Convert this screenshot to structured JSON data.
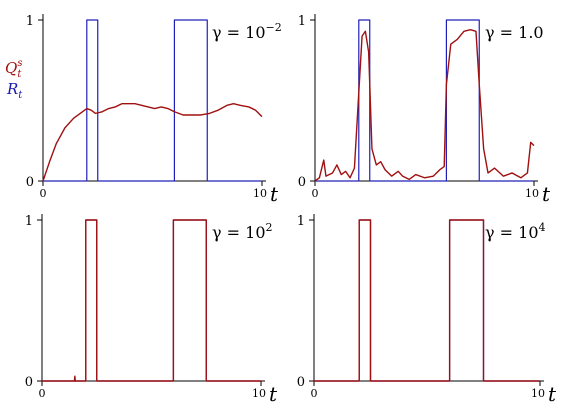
{
  "colors": {
    "R": "#2020b8",
    "Q": "#a01010",
    "axis": "#000000"
  },
  "legend": {
    "q_symbol": "Q",
    "q_sub": "t",
    "q_sup": "s",
    "r_symbol": "R",
    "r_sub": "t"
  },
  "chart_data": [
    {
      "type": "line",
      "gamma_base": "γ = 10",
      "gamma_exp": "−2",
      "x_label": "t",
      "x_ticks": [
        "0",
        "10"
      ],
      "y_ticks": [
        "0",
        "1"
      ],
      "xlim": [
        0,
        10
      ],
      "ylim": [
        0,
        1
      ],
      "show_legend": true,
      "series": [
        {
          "key": "R",
          "values": [
            [
              0,
              0
            ],
            [
              2,
              0
            ],
            [
              2,
              1
            ],
            [
              2.5,
              1
            ],
            [
              2.5,
              0
            ],
            [
              6,
              0
            ],
            [
              6,
              1
            ],
            [
              7.5,
              1
            ],
            [
              7.5,
              0
            ],
            [
              10,
              0
            ]
          ]
        },
        {
          "key": "Q",
          "values": [
            [
              0,
              0
            ],
            [
              0.3,
              0.12
            ],
            [
              0.6,
              0.23
            ],
            [
              1.0,
              0.33
            ],
            [
              1.4,
              0.39
            ],
            [
              1.8,
              0.43
            ],
            [
              2.0,
              0.45
            ],
            [
              2.2,
              0.44
            ],
            [
              2.4,
              0.42
            ],
            [
              2.7,
              0.43
            ],
            [
              3.0,
              0.45
            ],
            [
              3.3,
              0.46
            ],
            [
              3.6,
              0.48
            ],
            [
              3.9,
              0.48
            ],
            [
              4.2,
              0.48
            ],
            [
              4.5,
              0.47
            ],
            [
              4.8,
              0.46
            ],
            [
              5.1,
              0.45
            ],
            [
              5.4,
              0.46
            ],
            [
              5.7,
              0.45
            ],
            [
              6.0,
              0.43
            ],
            [
              6.4,
              0.41
            ],
            [
              6.8,
              0.41
            ],
            [
              7.2,
              0.41
            ],
            [
              7.6,
              0.42
            ],
            [
              8.0,
              0.44
            ],
            [
              8.4,
              0.47
            ],
            [
              8.7,
              0.48
            ],
            [
              9.0,
              0.47
            ],
            [
              9.4,
              0.46
            ],
            [
              9.7,
              0.44
            ],
            [
              10,
              0.4
            ]
          ]
        }
      ]
    },
    {
      "type": "line",
      "gamma_base": "γ = 1.0",
      "gamma_exp": "",
      "x_label": "t",
      "x_ticks": [
        "0",
        "10"
      ],
      "y_ticks": [
        "0",
        "1"
      ],
      "xlim": [
        0,
        10
      ],
      "ylim": [
        0,
        1
      ],
      "show_legend": false,
      "series": [
        {
          "key": "R",
          "values": [
            [
              0,
              0
            ],
            [
              2,
              0
            ],
            [
              2,
              1
            ],
            [
              2.5,
              1
            ],
            [
              2.5,
              0
            ],
            [
              6,
              0
            ],
            [
              6,
              1
            ],
            [
              7.5,
              1
            ],
            [
              7.5,
              0
            ],
            [
              10,
              0
            ]
          ]
        },
        {
          "key": "Q",
          "values": [
            [
              0,
              0
            ],
            [
              0.2,
              0.02
            ],
            [
              0.4,
              0.13
            ],
            [
              0.5,
              0.03
            ],
            [
              0.8,
              0.05
            ],
            [
              1.0,
              0.1
            ],
            [
              1.2,
              0.04
            ],
            [
              1.4,
              0.06
            ],
            [
              1.6,
              0.02
            ],
            [
              1.8,
              0.08
            ],
            [
              2.0,
              0.55
            ],
            [
              2.15,
              0.9
            ],
            [
              2.3,
              0.93
            ],
            [
              2.45,
              0.8
            ],
            [
              2.6,
              0.2
            ],
            [
              2.8,
              0.1
            ],
            [
              3.0,
              0.12
            ],
            [
              3.2,
              0.07
            ],
            [
              3.5,
              0.03
            ],
            [
              3.8,
              0.06
            ],
            [
              4.0,
              0.03
            ],
            [
              4.3,
              0.01
            ],
            [
              4.6,
              0.04
            ],
            [
              5.0,
              0.02
            ],
            [
              5.4,
              0.03
            ],
            [
              5.7,
              0.07
            ],
            [
              5.9,
              0.09
            ],
            [
              6.0,
              0.6
            ],
            [
              6.2,
              0.85
            ],
            [
              6.5,
              0.88
            ],
            [
              6.8,
              0.93
            ],
            [
              7.1,
              0.94
            ],
            [
              7.35,
              0.93
            ],
            [
              7.5,
              0.6
            ],
            [
              7.7,
              0.2
            ],
            [
              7.9,
              0.05
            ],
            [
              8.2,
              0.08
            ],
            [
              8.6,
              0.03
            ],
            [
              9.0,
              0.05
            ],
            [
              9.4,
              0.02
            ],
            [
              9.7,
              0.05
            ],
            [
              9.85,
              0.24
            ],
            [
              10,
              0.22
            ]
          ]
        }
      ]
    },
    {
      "type": "line",
      "gamma_base": "γ = 10",
      "gamma_exp": "2",
      "x_label": "t",
      "x_ticks": [
        "0",
        "10"
      ],
      "y_ticks": [
        "0",
        "1"
      ],
      "xlim": [
        0,
        10
      ],
      "ylim": [
        0,
        1
      ],
      "show_legend": false,
      "series": [
        {
          "key": "R",
          "values": [
            [
              0,
              0
            ],
            [
              2,
              0
            ],
            [
              2,
              1
            ],
            [
              2.5,
              1
            ],
            [
              2.5,
              0
            ],
            [
              6,
              0
            ],
            [
              6,
              1
            ],
            [
              7.5,
              1
            ],
            [
              7.5,
              0
            ],
            [
              10,
              0
            ]
          ]
        },
        {
          "key": "Q",
          "values": [
            [
              0,
              0
            ],
            [
              1.48,
              0
            ],
            [
              1.5,
              0.03
            ],
            [
              1.52,
              0
            ],
            [
              2,
              0
            ],
            [
              2,
              1
            ],
            [
              2.5,
              1
            ],
            [
              2.5,
              0
            ],
            [
              6,
              0
            ],
            [
              6,
              1
            ],
            [
              7.5,
              1
            ],
            [
              7.5,
              0
            ],
            [
              10,
              0
            ]
          ]
        }
      ]
    },
    {
      "type": "line",
      "gamma_base": "γ = 10",
      "gamma_exp": "4",
      "x_label": "t",
      "x_ticks": [
        "0",
        "10"
      ],
      "y_ticks": [
        "0",
        "1"
      ],
      "xlim": [
        0,
        10
      ],
      "ylim": [
        0,
        1
      ],
      "show_legend": false,
      "series": [
        {
          "key": "R",
          "values": [
            [
              0,
              0
            ],
            [
              2,
              0
            ],
            [
              2,
              1
            ],
            [
              2.5,
              1
            ],
            [
              2.5,
              0
            ],
            [
              6,
              0
            ],
            [
              6,
              1
            ],
            [
              7.5,
              1
            ],
            [
              7.5,
              0
            ],
            [
              10,
              0
            ]
          ]
        },
        {
          "key": "Q",
          "values": [
            [
              0,
              0
            ],
            [
              2,
              0
            ],
            [
              2,
              1
            ],
            [
              2.5,
              1
            ],
            [
              2.5,
              0
            ],
            [
              6,
              0
            ],
            [
              6,
              1
            ],
            [
              7.5,
              1
            ],
            [
              7.5,
              0
            ],
            [
              10,
              0
            ]
          ]
        }
      ]
    }
  ]
}
